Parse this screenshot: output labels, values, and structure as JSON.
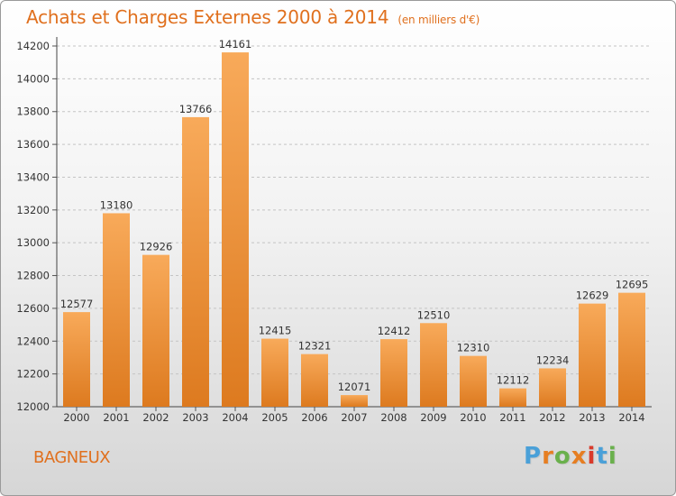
{
  "header": {
    "title": "Achats et Charges Externes 2000 à 2014",
    "subtitle": "(en milliers d'€)"
  },
  "footer": {
    "city": "BAGNEUX",
    "logo_text": "Proxiti"
  },
  "colors": {
    "accent": "#e0701e",
    "bar_light": "#f7a756",
    "bar_dark": "#dd7a1f",
    "logo": [
      "#4aa0d8",
      "#e67e22",
      "#6ab04c",
      "#e67e22",
      "#d93a2b",
      "#4aa0d8",
      "#6ab04c"
    ]
  },
  "chart_data": {
    "type": "bar",
    "title": "Achats et Charges Externes 2000 à 2014",
    "categories": [
      "2000",
      "2001",
      "2002",
      "2003",
      "2004",
      "2005",
      "2006",
      "2007",
      "2008",
      "2009",
      "2010",
      "2011",
      "2012",
      "2013",
      "2014"
    ],
    "values": [
      12577,
      13180,
      12926,
      13766,
      14161,
      12415,
      12321,
      12071,
      12412,
      12510,
      12310,
      12112,
      12234,
      12629,
      12695
    ],
    "ylim": [
      12000,
      14200
    ],
    "yticks": [
      12000,
      12200,
      12400,
      12600,
      12800,
      13000,
      13200,
      13400,
      13600,
      13800,
      14000,
      14200
    ],
    "grid": true,
    "xlabel": "",
    "ylabel": ""
  }
}
